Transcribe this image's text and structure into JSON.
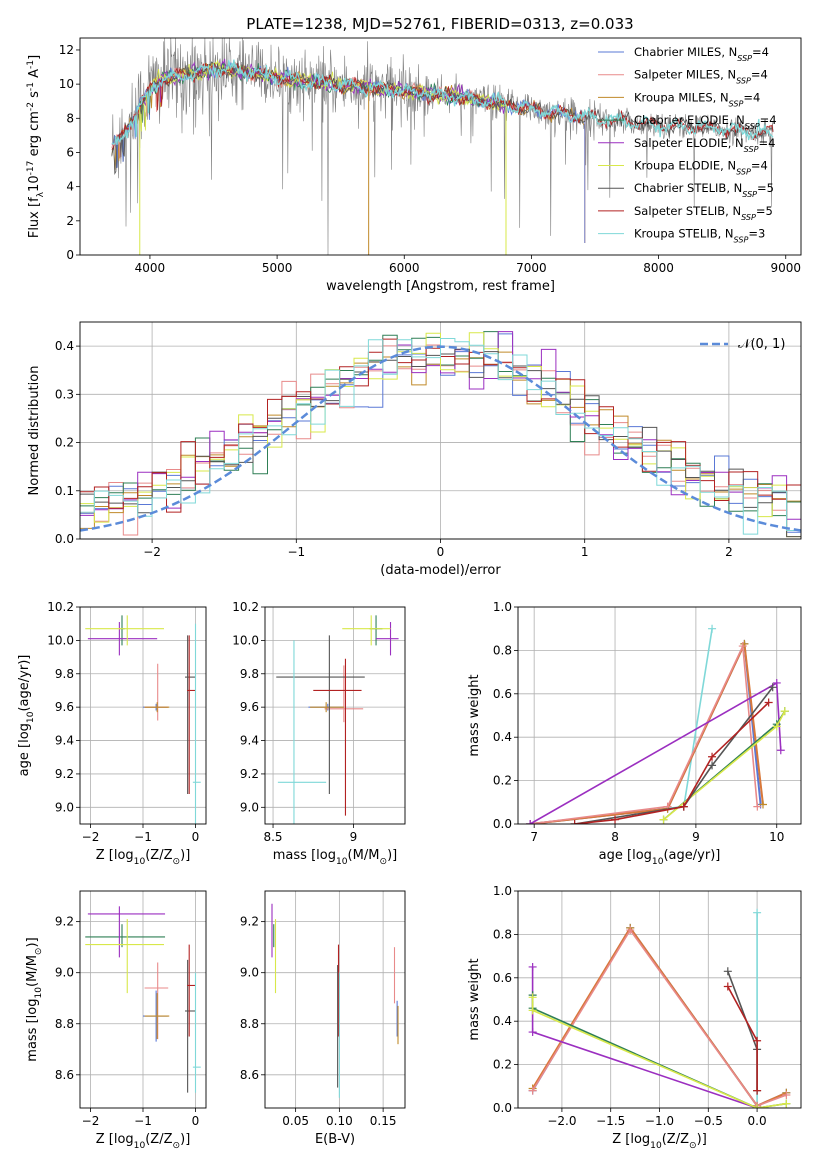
{
  "title": "PLATE=1238, MJD=52761, FIBERID=0313, z=0.033",
  "colors": {
    "Chabrier MILES": "#5a78d6",
    "Salpeter MILES": "#e88a8a",
    "Kroupa MILES": "#c08a2a",
    "Chabrier ELODIE": "#2f7f55",
    "Salpeter ELODIE": "#9b2fc0",
    "Kroupa ELODIE": "#d8e84a",
    "Chabrier STELIB": "#555555",
    "Salpeter STELIB": "#b22222",
    "Kroupa STELIB": "#7fd8d8",
    "data": "#808080",
    "normal": "#5b8bd9",
    "orange_line": "#d8783a"
  },
  "chart_data": [
    {
      "type": "line",
      "xlabel": "wavelength [Angstrom, rest frame]",
      "ylabel": "Flux [f$_\\lambda$10$^{-17}$ erg cm$^{-2}$ s$^{-1}$ A$^{-1}$]",
      "ylabel_display": "Flux [fλ10⁻¹⁷ erg cm⁻² s⁻¹ A⁻¹]",
      "xlim": [
        3450,
        9120
      ],
      "ylim": [
        0,
        12.7
      ],
      "xticks": [
        4000,
        5000,
        6000,
        7000,
        8000,
        9000
      ],
      "yticks": [
        0,
        2,
        4,
        6,
        8,
        10,
        12
      ],
      "legend_position": "top-right",
      "legend": [
        {
          "model": "Chabrier MILES",
          "label": "Chabrier MILES, N",
          "n": "4"
        },
        {
          "model": "Salpeter MILES",
          "label": "Salpeter MILES, N",
          "n": "4"
        },
        {
          "model": "Kroupa MILES",
          "label": "Kroupa MILES, N",
          "n": "4"
        },
        {
          "model": "Chabrier ELODIE",
          "label": "Chabrier ELODIE, N",
          "n": "4"
        },
        {
          "model": "Salpeter ELODIE",
          "label": "Salpeter ELODIE, N",
          "n": "4"
        },
        {
          "model": "Kroupa ELODIE",
          "label": "Kroupa ELODIE, N",
          "n": "4"
        },
        {
          "model": "Chabrier STELIB",
          "label": "Chabrier STELIB, N",
          "n": "5"
        },
        {
          "model": "Salpeter STELIB",
          "label": "Salpeter STELIB, N",
          "n": "5"
        },
        {
          "model": "Kroupa STELIB",
          "label": "Kroupa STELIB, N",
          "n": "3"
        }
      ],
      "legend_subscript": "SSP",
      "continuum": [
        [
          3700,
          6.2
        ],
        [
          3800,
          7.2
        ],
        [
          3900,
          8.4
        ],
        [
          4000,
          9.7
        ],
        [
          4100,
          10.3
        ],
        [
          4300,
          10.6
        ],
        [
          4500,
          10.9
        ],
        [
          4700,
          10.8
        ],
        [
          5000,
          10.4
        ],
        [
          5300,
          10.1
        ],
        [
          5600,
          9.9
        ],
        [
          6000,
          9.6
        ],
        [
          6400,
          9.3
        ],
        [
          6800,
          8.8
        ],
        [
          7200,
          8.3
        ],
        [
          7600,
          7.9
        ],
        [
          8000,
          7.6
        ],
        [
          8400,
          7.4
        ],
        [
          8800,
          7.2
        ],
        [
          8900,
          7.1
        ]
      ],
      "model_ranges": {
        "Chabrier MILES": [
          3700,
          7420
        ],
        "Salpeter MILES": [
          3700,
          7420
        ],
        "Kroupa MILES": [
          3700,
          7420
        ],
        "Chabrier ELODIE": [
          3900,
          6800
        ],
        "Salpeter ELODIE": [
          3900,
          6800
        ],
        "Kroupa ELODIE": [
          3900,
          6800
        ],
        "Chabrier STELIB": [
          3700,
          8900
        ],
        "Salpeter STELIB": [
          3700,
          8900
        ],
        "Kroupa STELIB": [
          3700,
          8900
        ]
      }
    },
    {
      "type": "histogram",
      "xlabel": "(data-model)/error",
      "ylabel": "Normed distribution",
      "xlim": [
        -2.5,
        2.5
      ],
      "ylim": [
        0,
        0.45
      ],
      "xticks": [
        -2,
        -1,
        0,
        1,
        2
      ],
      "yticks": [
        0.0,
        0.1,
        0.2,
        0.3,
        0.4
      ],
      "grid": true,
      "legend_position": "top-right",
      "legend": [
        {
          "label": "$\\mathcal{N}(0,1)$",
          "display": "𝒩(0, 1)"
        }
      ],
      "bin_width": 0.1,
      "bin_start": -2.5
    },
    {
      "type": "errorbar",
      "xlabel": "Z [log$_{10}$(Z/Z$_\\odot$)]",
      "ylabel": "age  [log$_{10}$(age/yr)]",
      "xlim": [
        -2.2,
        0.2
      ],
      "ylim": [
        8.9,
        10.2
      ],
      "xticks": [
        -2,
        -1,
        0
      ],
      "yticks": [
        9.0,
        9.2,
        9.4,
        9.6,
        9.8,
        10.0,
        10.2
      ],
      "points": [
        {
          "model": "Chabrier MILES",
          "x": -0.75,
          "y": 9.6,
          "xerr": [
            0.25,
            0.22
          ],
          "yerr": [
            0.02,
            0.02
          ]
        },
        {
          "model": "Salpeter MILES",
          "x": -0.72,
          "y": 9.6,
          "xerr": [
            0.25,
            0.2
          ],
          "yerr": [
            0.08,
            0.26
          ]
        },
        {
          "model": "Kroupa MILES",
          "x": -0.73,
          "y": 9.6,
          "xerr": [
            0.24,
            0.23
          ],
          "yerr": [
            0.03,
            0.03
          ]
        },
        {
          "model": "Chabrier ELODIE",
          "x": -1.4,
          "y": 10.07,
          "xerr": [
            0.03,
            0.05
          ],
          "yerr": [
            0.1,
            0.08
          ]
        },
        {
          "model": "Salpeter ELODIE",
          "x": -1.45,
          "y": 10.01,
          "xerr": [
            0.6,
            0.72
          ],
          "yerr": [
            0.1,
            0.1
          ]
        },
        {
          "model": "Kroupa ELODIE",
          "x": -1.3,
          "y": 10.07,
          "xerr": [
            0.8,
            0.7
          ],
          "yerr": [
            0.1,
            0.08
          ]
        },
        {
          "model": "Chabrier STELIB",
          "x": -0.15,
          "y": 9.78,
          "xerr": [
            0.05,
            0.15
          ],
          "yerr": [
            0.7,
            0.25
          ]
        },
        {
          "model": "Salpeter STELIB",
          "x": -0.12,
          "y": 9.7,
          "xerr": [
            0.04,
            0.12
          ],
          "yerr": [
            0.62,
            0.33
          ]
        },
        {
          "model": "Kroupa STELIB",
          "x": 0.0,
          "y": 9.15,
          "xerr": [
            0.05,
            0.1
          ],
          "yerr": [
            0.25,
            0.95
          ]
        }
      ]
    },
    {
      "type": "errorbar",
      "xlabel": "mass [log$_{10}$(M/M$_\\odot$)]",
      "ylabel": "",
      "xlim": [
        8.45,
        9.32
      ],
      "ylim": [
        8.9,
        10.2
      ],
      "xticks": [
        8.5,
        9.0
      ],
      "yticks": [
        9.0,
        9.2,
        9.4,
        9.6,
        9.8,
        10.0,
        10.2
      ],
      "points": [
        {
          "model": "Chabrier MILES",
          "x": 8.84,
          "y": 9.6,
          "xerr": [
            0.12,
            0.1
          ],
          "yerr": [
            0.02,
            0.02
          ]
        },
        {
          "model": "Salpeter MILES",
          "x": 8.94,
          "y": 9.59,
          "xerr": [
            0.12,
            0.12
          ],
          "yerr": [
            0.08,
            0.26
          ]
        },
        {
          "model": "Kroupa MILES",
          "x": 8.83,
          "y": 9.6,
          "xerr": [
            0.1,
            0.11
          ],
          "yerr": [
            0.03,
            0.03
          ]
        },
        {
          "model": "Chabrier ELODIE",
          "x": 9.14,
          "y": 10.07,
          "xerr": [
            0.04,
            0.04
          ],
          "yerr": [
            0.1,
            0.08
          ]
        },
        {
          "model": "Salpeter ELODIE",
          "x": 9.23,
          "y": 10.01,
          "xerr": [
            0.09,
            0.05
          ],
          "yerr": [
            0.1,
            0.1
          ]
        },
        {
          "model": "Kroupa ELODIE",
          "x": 9.11,
          "y": 10.07,
          "xerr": [
            0.18,
            0.12
          ],
          "yerr": [
            0.1,
            0.08
          ]
        },
        {
          "model": "Chabrier STELIB",
          "x": 8.85,
          "y": 9.78,
          "xerr": [
            0.33,
            0.22
          ],
          "yerr": [
            0.7,
            0.25
          ]
        },
        {
          "model": "Salpeter STELIB",
          "x": 8.95,
          "y": 9.7,
          "xerr": [
            0.2,
            0.1
          ],
          "yerr": [
            0.75,
            0.19
          ]
        },
        {
          "model": "Kroupa STELIB",
          "x": 8.63,
          "y": 9.15,
          "xerr": [
            0.1,
            0.2
          ],
          "yerr": [
            0.25,
            0.85
          ]
        }
      ]
    },
    {
      "type": "line",
      "xlabel": "age  [log$_{10}$(age/yr)]",
      "ylabel": "mass weight",
      "xlim": [
        6.8,
        10.3
      ],
      "ylim": [
        0.0,
        1.0
      ],
      "xticks": [
        7,
        8,
        9,
        10
      ],
      "yticks": [
        0.0,
        0.2,
        0.4,
        0.6,
        0.8,
        1.0
      ],
      "series": [
        {
          "model": "Kroupa STELIB",
          "x": [
            6.95,
            8.85,
            9.2
          ],
          "y": [
            0.0,
            0.08,
            0.9
          ]
        },
        {
          "model": "Chabrier MILES",
          "x": [
            6.95,
            8.65,
            9.6,
            9.8
          ],
          "y": [
            0.0,
            0.07,
            0.83,
            0.09
          ]
        },
        {
          "model": "Kroupa MILES",
          "x": [
            6.95,
            8.65,
            9.6,
            9.83
          ],
          "y": [
            0.0,
            0.07,
            0.83,
            0.09
          ]
        },
        {
          "model": "Salpeter MILES",
          "x": [
            6.95,
            8.65,
            9.58,
            9.76
          ],
          "y": [
            0.0,
            0.08,
            0.82,
            0.08
          ]
        },
        {
          "model": "Salpeter ELODIE",
          "x": [
            6.95,
            10.0,
            10.05
          ],
          "y": [
            0.0,
            0.65,
            0.34
          ]
        },
        {
          "model": "Chabrier ELODIE",
          "x": [
            8.6,
            10.0,
            10.1
          ],
          "y": [
            0.02,
            0.46,
            0.52
          ]
        },
        {
          "model": "Kroupa ELODIE",
          "x": [
            8.6,
            10.0,
            10.1
          ],
          "y": [
            0.02,
            0.45,
            0.52
          ]
        },
        {
          "model": "Chabrier STELIB",
          "x": [
            7.5,
            8.85,
            9.2,
            9.95
          ],
          "y": [
            0.0,
            0.08,
            0.27,
            0.63
          ]
        },
        {
          "model": "Salpeter STELIB",
          "x": [
            7.5,
            8.0,
            8.85,
            9.2,
            9.9
          ],
          "y": [
            0.0,
            0.02,
            0.08,
            0.31,
            0.56
          ]
        }
      ]
    },
    {
      "type": "errorbar",
      "xlabel": "Z [log$_{10}$(Z/Z$_\\odot$)]",
      "ylabel": "mass [log$_{10}$(M/M$_\\odot$)]",
      "xlim": [
        -2.2,
        0.2
      ],
      "ylim": [
        8.47,
        9.32
      ],
      "xticks": [
        -2,
        -1,
        0
      ],
      "yticks": [
        8.6,
        8.8,
        9.0,
        9.2
      ],
      "points": [
        {
          "model": "Chabrier MILES",
          "x": -0.75,
          "y": 8.83,
          "xerr": [
            0.25,
            0.22
          ],
          "yerr": [
            0.1,
            0.1
          ]
        },
        {
          "model": "Salpeter MILES",
          "x": -0.72,
          "y": 8.94,
          "xerr": [
            0.25,
            0.2
          ],
          "yerr": [
            0.2,
            0.1
          ]
        },
        {
          "model": "Kroupa MILES",
          "x": -0.73,
          "y": 8.83,
          "xerr": [
            0.24,
            0.23
          ],
          "yerr": [
            0.09,
            0.09
          ]
        },
        {
          "model": "Chabrier ELODIE",
          "x": -1.4,
          "y": 9.14,
          "xerr": [
            0.7,
            0.82
          ],
          "yerr": [
            0.04,
            0.05
          ]
        },
        {
          "model": "Salpeter ELODIE",
          "x": -1.45,
          "y": 9.23,
          "xerr": [
            0.6,
            0.87
          ],
          "yerr": [
            0.17,
            0.03
          ]
        },
        {
          "model": "Kroupa ELODIE",
          "x": -1.3,
          "y": 9.11,
          "xerr": [
            0.8,
            0.7
          ],
          "yerr": [
            0.19,
            0.1
          ]
        },
        {
          "model": "Chabrier STELIB",
          "x": -0.15,
          "y": 8.85,
          "xerr": [
            0.05,
            0.15
          ],
          "yerr": [
            0.32,
            0.2
          ]
        },
        {
          "model": "Salpeter STELIB",
          "x": -0.12,
          "y": 8.95,
          "xerr": [
            0.04,
            0.12
          ],
          "yerr": [
            0.2,
            0.16
          ]
        },
        {
          "model": "Kroupa STELIB",
          "x": 0.0,
          "y": 8.63,
          "xerr": [
            0.05,
            0.1
          ],
          "yerr": [
            0.1,
            0.37
          ]
        }
      ]
    },
    {
      "type": "errorbar",
      "xlabel": "E(B-V)",
      "ylabel": "",
      "xlim": [
        0.015,
        0.175
      ],
      "ylim": [
        8.47,
        9.32
      ],
      "xticks": [
        0.05,
        0.1,
        0.15
      ],
      "yticks": [
        8.6,
        8.8,
        9.0,
        9.2
      ],
      "points": [
        {
          "model": "Chabrier MILES",
          "x": 0.166,
          "y": 8.82,
          "yerr": [
            0.07,
            0.07
          ]
        },
        {
          "model": "Salpeter MILES",
          "x": 0.163,
          "y": 8.95,
          "yerr": [
            0.07,
            0.15
          ]
        },
        {
          "model": "Kroupa MILES",
          "x": 0.167,
          "y": 8.8,
          "yerr": [
            0.08,
            0.07
          ]
        },
        {
          "model": "Chabrier ELODIE",
          "x": 0.025,
          "y": 9.14,
          "yerr": [
            0.04,
            0.05
          ]
        },
        {
          "model": "Salpeter ELODIE",
          "x": 0.023,
          "y": 9.23,
          "yerr": [
            0.17,
            0.04
          ]
        },
        {
          "model": "Kroupa ELODIE",
          "x": 0.027,
          "y": 9.11,
          "yerr": [
            0.19,
            0.1
          ]
        },
        {
          "model": "Chabrier STELIB",
          "x": 0.098,
          "y": 8.85,
          "yerr": [
            0.3,
            0.18
          ]
        },
        {
          "model": "Salpeter STELIB",
          "x": 0.099,
          "y": 8.95,
          "yerr": [
            0.2,
            0.16
          ]
        },
        {
          "model": "Kroupa STELIB",
          "x": 0.1,
          "y": 8.63,
          "yerr": [
            0.12,
            0.37
          ]
        }
      ]
    },
    {
      "type": "line",
      "xlabel": "Z [log$_{10}$(Z/Z$_\\odot$)]",
      "ylabel": "mass weight",
      "xlim": [
        -2.45,
        0.45
      ],
      "ylim": [
        0.0,
        1.0
      ],
      "xticks": [
        -2.0,
        -1.5,
        -1.0,
        -0.5,
        0.0
      ],
      "yticks": [
        0.0,
        0.2,
        0.4,
        0.6,
        0.8,
        1.0
      ],
      "series": [
        {
          "model": "Kroupa STELIB",
          "x": [
            0.0,
            0.0
          ],
          "y": [
            0.0,
            0.9
          ]
        },
        {
          "model": "Chabrier MILES",
          "x": [
            -2.3,
            -1.3,
            0.0,
            0.3
          ],
          "y": [
            0.08,
            0.83,
            0.01,
            0.07
          ]
        },
        {
          "model": "Kroupa MILES",
          "x": [
            -2.3,
            -1.3,
            0.0,
            0.3
          ],
          "y": [
            0.09,
            0.83,
            0.01,
            0.07
          ]
        },
        {
          "model": "Salpeter MILES",
          "x": [
            -2.3,
            -1.3,
            0.0,
            0.3
          ],
          "y": [
            0.08,
            0.82,
            0.01,
            0.06
          ]
        },
        {
          "model": "Salpeter ELODIE",
          "x": [
            -2.3,
            -2.3,
            0.0
          ],
          "y": [
            0.65,
            0.35,
            0.0
          ]
        },
        {
          "model": "Chabrier ELODIE",
          "x": [
            -2.3,
            -2.3,
            0.0,
            0.3
          ],
          "y": [
            0.52,
            0.46,
            0.0,
            0.02
          ]
        },
        {
          "model": "Kroupa ELODIE",
          "x": [
            -2.3,
            -2.3,
            0.0,
            0.3
          ],
          "y": [
            0.51,
            0.45,
            0.0,
            0.02
          ]
        },
        {
          "model": "Chabrier STELIB",
          "x": [
            -0.3,
            0.0,
            0.0
          ],
          "y": [
            0.63,
            0.27,
            0.08
          ]
        },
        {
          "model": "Salpeter STELIB",
          "x": [
            -0.3,
            0.0,
            0.0
          ],
          "y": [
            0.56,
            0.31,
            0.08
          ]
        }
      ]
    }
  ]
}
